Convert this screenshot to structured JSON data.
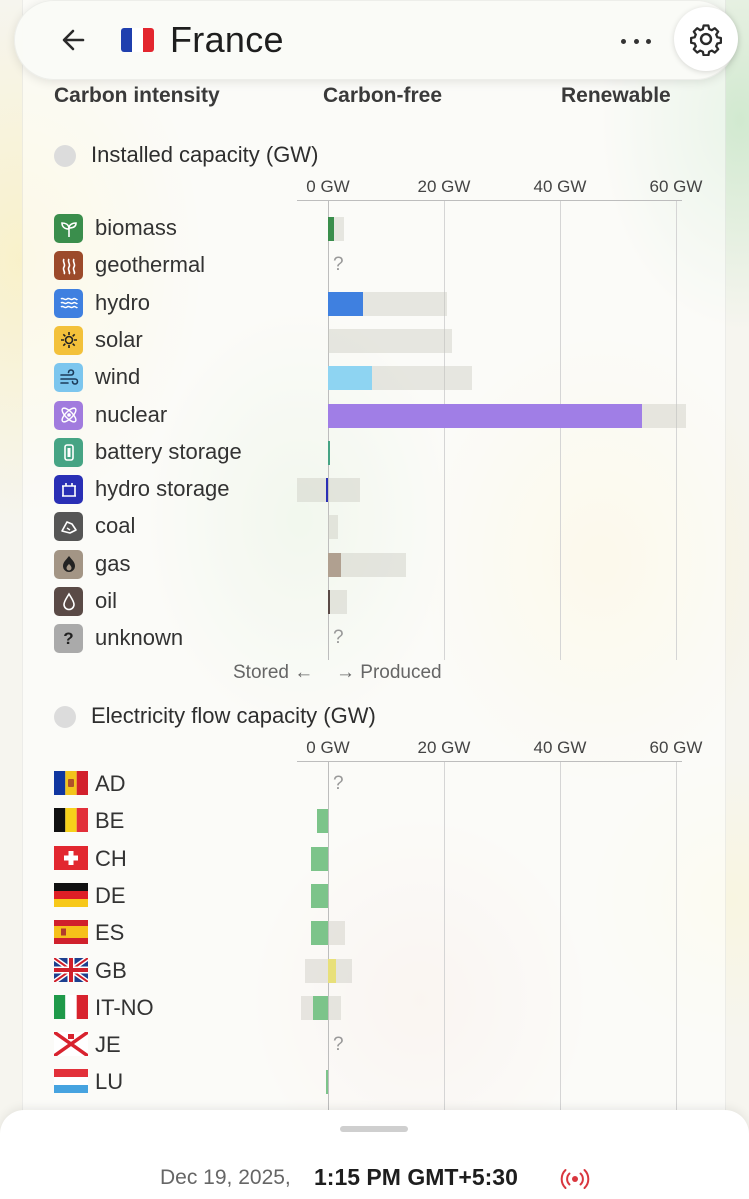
{
  "header": {
    "title": "France",
    "flag": "fr-flag",
    "back_icon": "arrow-left-icon",
    "more_icon": "more-horizontal-icon",
    "settings_icon": "gear-icon"
  },
  "tabs": [
    {
      "label": "Carbon intensity"
    },
    {
      "label": "Carbon-free"
    },
    {
      "label": "Renewable"
    }
  ],
  "installed": {
    "title": "Installed capacity (GW)",
    "axis_ticks": [
      "0 GW",
      "20 GW",
      "40 GW",
      "60 GW"
    ],
    "stored_label": "Stored ←",
    "produced_label": "→ Produced",
    "rows": [
      {
        "label": "biomass",
        "icon": "sprout-icon",
        "icon_color": "#3a8e4c",
        "unknown": false
      },
      {
        "label": "geothermal",
        "icon": "heat-waves-icon",
        "icon_color": "#9c4a2a",
        "unknown": true,
        "unknown_mark": "?"
      },
      {
        "label": "hydro",
        "icon": "waves-icon",
        "icon_color": "#3f80e0",
        "unknown": false
      },
      {
        "label": "solar",
        "icon": "sun-icon",
        "icon_color": "#f3c13a",
        "unknown": false
      },
      {
        "label": "wind",
        "icon": "wind-icon",
        "icon_color": "#7cc6ee",
        "unknown": false
      },
      {
        "label": "nuclear",
        "icon": "atom-icon",
        "icon_color": "#a17bde",
        "unknown": false
      },
      {
        "label": "battery storage",
        "icon": "battery-icon",
        "icon_color": "#46a484",
        "unknown": false
      },
      {
        "label": "hydro storage",
        "icon": "reservoir-icon",
        "icon_color": "#2a2fb5",
        "unknown": false
      },
      {
        "label": "coal",
        "icon": "coal-icon",
        "icon_color": "#555555",
        "unknown": false
      },
      {
        "label": "gas",
        "icon": "flame-icon",
        "icon_color": "#a39585",
        "unknown": false
      },
      {
        "label": "oil",
        "icon": "drop-icon",
        "icon_color": "#5a4a46",
        "unknown": false
      },
      {
        "label": "unknown",
        "icon": "question-icon",
        "icon_color": "#aaaaaa",
        "unknown": true,
        "unknown_mark": "?"
      }
    ]
  },
  "flows": {
    "title": "Electricity flow capacity (GW)",
    "axis_ticks": [
      "0 GW",
      "20 GW",
      "40 GW",
      "60 GW"
    ],
    "rows": [
      {
        "label": "AD",
        "flag": "andorra-flag",
        "unknown": true,
        "unknown_mark": "?"
      },
      {
        "label": "BE",
        "flag": "belgium-flag",
        "unknown": false
      },
      {
        "label": "CH",
        "flag": "switzerland-flag",
        "unknown": false
      },
      {
        "label": "DE",
        "flag": "germany-flag",
        "unknown": false
      },
      {
        "label": "ES",
        "flag": "spain-flag",
        "unknown": false
      },
      {
        "label": "GB",
        "flag": "uk-flag",
        "unknown": false
      },
      {
        "label": "IT-NO",
        "flag": "italy-flag",
        "unknown": false
      },
      {
        "label": "JE",
        "flag": "jersey-flag",
        "unknown": true,
        "unknown_mark": "?"
      },
      {
        "label": "LU",
        "flag": "luxembourg-flag",
        "unknown": false
      }
    ]
  },
  "chart_data": [
    {
      "type": "bar",
      "title": "Installed capacity (GW)",
      "categories": [
        "biomass",
        "geothermal",
        "hydro",
        "solar",
        "wind",
        "nuclear",
        "battery storage",
        "hydro storage",
        "coal",
        "gas",
        "oil",
        "unknown"
      ],
      "series": [
        {
          "name": "",
          "values": [
            1.1,
            null,
            6.0,
            0,
            7.6,
            54.2,
            0.3,
            -0.3,
            0,
            2.3,
            0.2,
            0.2
          ],
          "color_by_category": [
            "#3a8e4c",
            "#9c4a2a",
            "#3f80e0",
            "#f3c13a",
            "#8ed4f2",
            "#a07ee6",
            "#46a484",
            "#2a2fb5",
            "#555555",
            "#b0a090",
            "#5a4a46",
            "#aaaaaa"
          ]
        },
        {
          "name": "",
          "values": [
            2.8,
            null,
            20.6,
            21.4,
            24.8,
            61.8,
            0.3,
            5.6,
            1.8,
            13.4,
            3.2,
            0.3
          ],
          "storage_min": [
            null,
            null,
            null,
            null,
            null,
            null,
            0,
            -5.4,
            null,
            null,
            null,
            null
          ]
        }
      ],
      "xlim": [
        -5.4,
        65
      ],
      "xticks": [
        0,
        20,
        40,
        60
      ],
      "grid": true
    },
    {
      "type": "bar",
      "title": "Electricity flow capacity (GW)",
      "categories": [
        "AD",
        "BE",
        "CH",
        "DE",
        "ES",
        "GB",
        "IT-NO",
        "JE",
        "LU"
      ],
      "series": [
        {
          "name": "",
          "values": [
            null,
            -1.9,
            -2.9,
            -2.9,
            -2.9,
            1.3,
            -2.6,
            null,
            -0.3
          ],
          "colors": [
            "#ffffff",
            "#7cc48a",
            "#7cc48a",
            "#7cc48a",
            "#7cc48a",
            "#e8e07a",
            "#7cc48a",
            "#ffffff",
            "#7cc48a"
          ]
        },
        {
          "name": "",
          "range_min": [
            null,
            -1.9,
            -2.9,
            -2.9,
            -2.9,
            -4.0,
            -4.6,
            null,
            -0.3
          ],
          "range_max": [
            null,
            0,
            0,
            0,
            3.0,
            4.2,
            2.3,
            null,
            0
          ]
        }
      ],
      "xlim": [
        -5.4,
        65
      ],
      "xticks": [
        0,
        20,
        40,
        60
      ],
      "grid": true
    }
  ],
  "footer": {
    "date": "Dec 19, 2025,",
    "time": "1:15 PM GMT+5:30",
    "live_icon": "live-broadcast-icon"
  }
}
